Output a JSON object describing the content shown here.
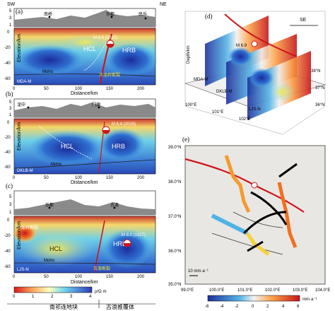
{
  "panels": {
    "a": {
      "label": "(a)",
      "ends": {
        "left": "SW",
        "right": "NE"
      },
      "towns": [
        "南桥",
        "乐都",
        "民乐"
      ],
      "event": "M 6.9 (2022)",
      "zones": {
        "left": "HCL",
        "right": "HRB"
      },
      "moho": "Moho",
      "model": "MDA-M",
      "fault": "冷龙岭断裂",
      "fault2": "冷龙岭断裂",
      "xlabel": "Distance/km",
      "ylabel_top": "Elevation/km",
      "ylabel_bottom": "Elevation/km",
      "yticks_top": [
        "5",
        "3",
        "1"
      ],
      "yticks_bottom": [
        "0",
        "-20",
        "-40",
        "-60"
      ],
      "xticks": [
        "0",
        "50",
        "100",
        "150",
        "200"
      ]
    },
    "b": {
      "label": "(b)",
      "towns": [
        "湟中",
        "门源"
      ],
      "event": "M 6.4 (2016)",
      "zones": {
        "left": "HCL",
        "right": "HRB"
      },
      "moho": "Moho",
      "model": "DKLB-M",
      "xlabel": "Distance/km",
      "ylabel_top": "Elevation/km",
      "ylabel_bottom": "Elevation/km",
      "yticks_top": [
        "5",
        "3",
        "1"
      ],
      "yticks_bottom": [
        "0",
        "-20",
        "-40",
        "-60"
      ],
      "xticks": [
        "0",
        "50",
        "100",
        "150",
        "200"
      ]
    },
    "c": {
      "label": "(c)",
      "towns": [
        "乐都",
        "古浪"
      ],
      "event": "M 8.0 (1927)",
      "zones": {
        "left": "HCL",
        "right": "HRB"
      },
      "moho": "Moho",
      "model": "LJS-N",
      "fault": "古浪断裂",
      "fault_left": "冷龙岭断裂",
      "xlabel": "Distance/km",
      "ylabel_top": "Elevation/km",
      "ylabel_bottom": "Elevation/km",
      "yticks_top": [
        "5",
        "3",
        "1"
      ],
      "yticks_bottom": [
        "0",
        "-20",
        "-40",
        "-60"
      ],
      "xticks": [
        "0",
        "50",
        "100",
        "150",
        "200"
      ]
    },
    "d": {
      "label": "(d)",
      "event": "M 6.9",
      "direction": "SE",
      "models": [
        "MDA-M",
        "DKLB-M",
        "LJS-N"
      ],
      "depth_label": "Depth/km",
      "depth_ticks": [
        "0",
        "20",
        "40",
        "60"
      ],
      "lon_ticks": [
        "100°E",
        "101°E",
        "102°E"
      ],
      "lat_ticks": [
        "38°N",
        "37°N",
        "36°N"
      ]
    },
    "e": {
      "label": "(e)",
      "scale": "10 mm·a⁻¹",
      "lat_ticks": [
        "39.0°N",
        "38.0°N",
        "37.0°N",
        "36.0°N",
        "35.0°N"
      ],
      "lon_ticks": [
        "99.0°E",
        "100.0°E",
        "101.0°E",
        "102.0°E",
        "103.0°E",
        "104.0°E"
      ],
      "cbar_ticks": [
        "-6",
        "-4",
        "-2",
        "0",
        "2",
        "4",
        "6"
      ],
      "cbar_unit": "mm·a⁻¹"
    }
  },
  "resistivity_bar": {
    "ticks": [
      "0",
      "1",
      "2",
      "3",
      "4"
    ],
    "unit": "ρ/Ω·m",
    "left_note": "南祁连地块",
    "right_note": "古浪推覆体"
  },
  "colors": {
    "topo": "#8a8a8a",
    "fault": "#d0141a",
    "moho": "#222222"
  }
}
